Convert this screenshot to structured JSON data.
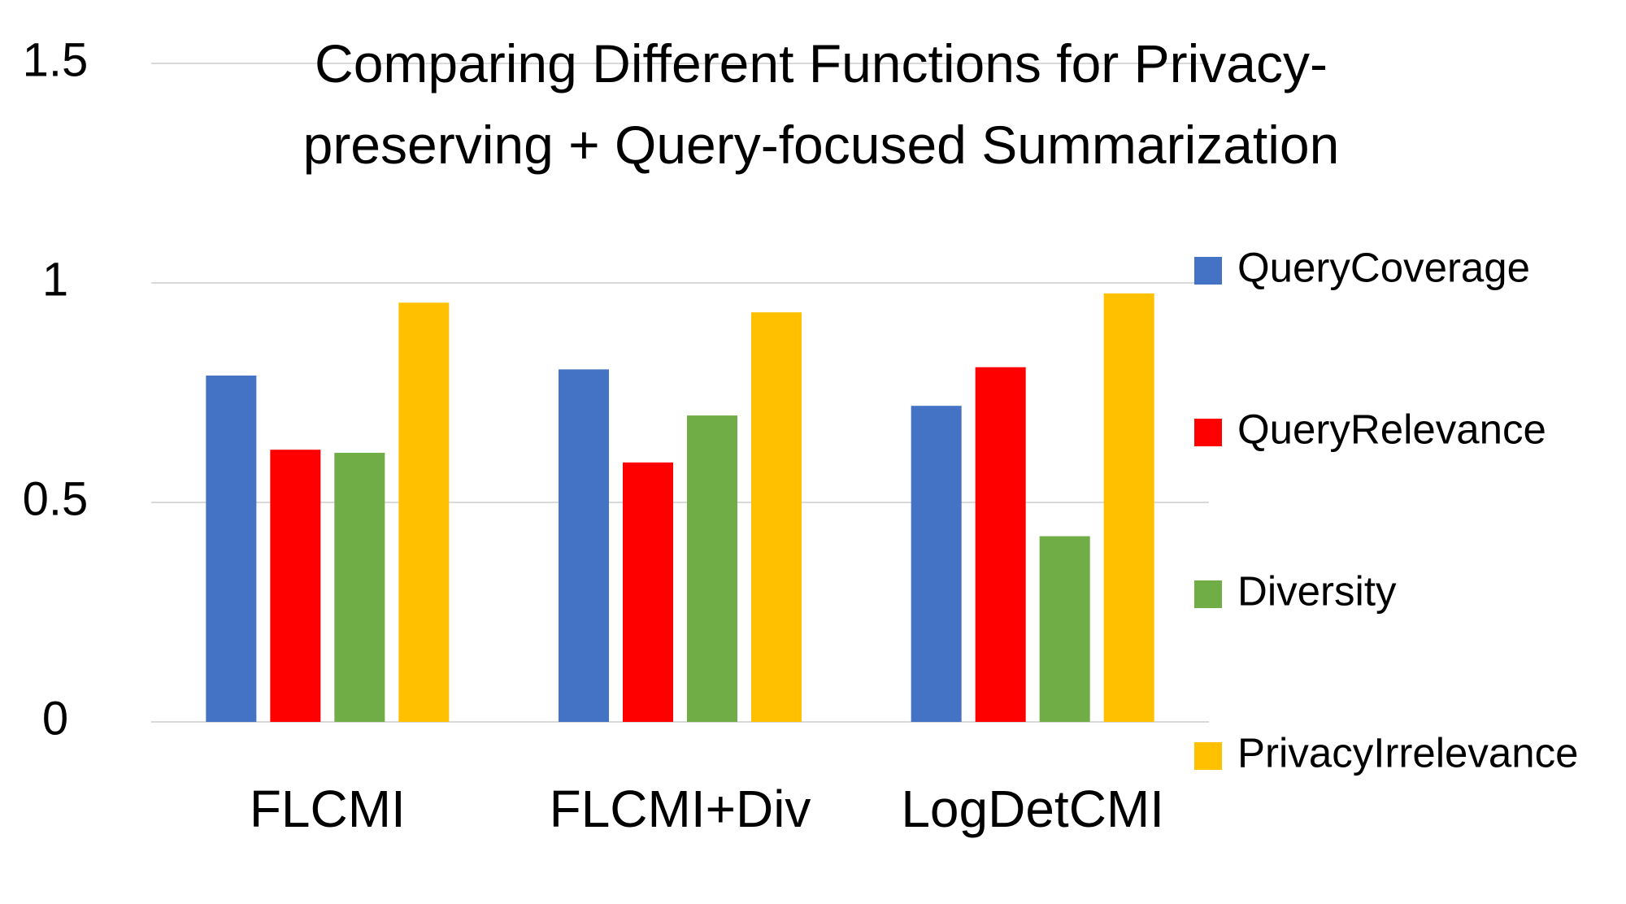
{
  "chart_data": {
    "type": "bar",
    "title": "Comparing Different Functions for Privacy-preserving + Query-focused Summarization",
    "categories": [
      "FLCMI",
      "FLCMI+Div",
      "LogDetCMI"
    ],
    "series": [
      {
        "name": "QueryCoverage",
        "color": "#4472c4",
        "values": [
          0.789,
          0.803,
          0.72
        ]
      },
      {
        "name": "QueryRelevance",
        "color": "#ff0000",
        "values": [
          0.62,
          0.591,
          0.808
        ]
      },
      {
        "name": "Diversity",
        "color": "#70ad47",
        "values": [
          0.613,
          0.698,
          0.423
        ]
      },
      {
        "name": "PrivacyIrrelevance",
        "color": "#ffc000",
        "values": [
          0.955,
          0.933,
          0.976
        ]
      }
    ],
    "ylim": [
      0,
      1.5
    ],
    "yticks": [
      0,
      0.5,
      1,
      1.5
    ],
    "grid": true,
    "legend": "right"
  }
}
